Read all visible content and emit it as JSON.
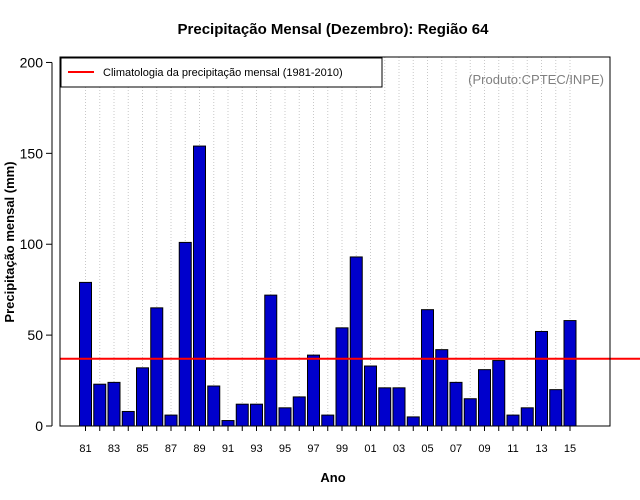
{
  "chart_data": {
    "type": "bar",
    "title": "Precipitação Mensal (Dezembro): Região 64",
    "xlabel": "Ano",
    "ylabel": "Precipitação mensal (mm)",
    "source_note": "(Produto:CPTEC/INPE)",
    "ylim": [
      0,
      200
    ],
    "yticks": [
      0,
      50,
      100,
      150,
      200
    ],
    "grid": "vertical dotted lines at each year",
    "legend_placement": "top-left",
    "categories": [
      "1981",
      "1982",
      "1983",
      "1984",
      "1985",
      "1986",
      "1987",
      "1988",
      "1989",
      "1990",
      "1991",
      "1992",
      "1993",
      "1994",
      "1995",
      "1996",
      "1997",
      "1998",
      "1999",
      "2000",
      "2001",
      "2002",
      "2003",
      "2004",
      "2005",
      "2006",
      "2007",
      "2008",
      "2009",
      "2010",
      "2011",
      "2012",
      "2013",
      "2014",
      "2015"
    ],
    "x_tick_labels": [
      "81",
      "83",
      "85",
      "87",
      "89",
      "91",
      "93",
      "95",
      "97",
      "99",
      "01",
      "03",
      "05",
      "07",
      "09",
      "11",
      "13",
      "15"
    ],
    "values": [
      79,
      23,
      24,
      8,
      32,
      65,
      6,
      101,
      154,
      22,
      3,
      12,
      12,
      72,
      10,
      16,
      39,
      6,
      54,
      93,
      33,
      21,
      21,
      5,
      64,
      42,
      24,
      15,
      31,
      36,
      6,
      10,
      52,
      20,
      58
    ],
    "bar_color": "#0000cc",
    "climatology": {
      "name": "Climatologia da precipitação mensal (1981-2010)",
      "value": 37,
      "color": "#ff0000"
    }
  }
}
